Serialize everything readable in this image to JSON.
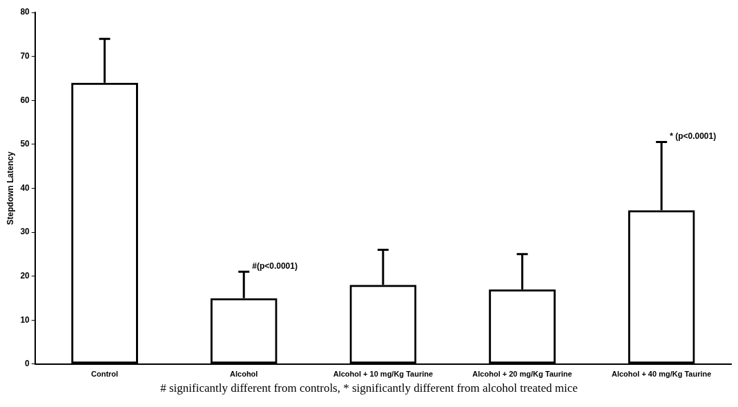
{
  "chart_data": {
    "type": "bar",
    "ylabel": "Stepdown Latency",
    "categories": [
      "Control",
      "Alcohol",
      "Alcohol + 10 mg/Kg Taurine",
      "Alcohol + 20 mg/Kg Taurine",
      "Alcohol + 40 mg/Kg Taurine"
    ],
    "values": [
      64,
      15,
      18,
      17,
      35
    ],
    "color": "#000000",
    "errors": [
      [
        64,
        74
      ],
      [
        15,
        21
      ],
      [
        18,
        26
      ],
      [
        17,
        25
      ],
      [
        35,
        50.5
      ]
    ],
    "ylim": [
      0,
      80
    ],
    "yticks": [
      0,
      10,
      20,
      30,
      40,
      50,
      60,
      70,
      80
    ],
    "grid": false,
    "legend": false,
    "annotations": [
      {
        "text": "#(p<0.0001)",
        "x": "Alcohol",
        "y": 21
      },
      {
        "text": "* (p<0.0001)",
        "x": "Alcohol + 40 mg/Kg Taurine",
        "y": 50.5
      },
      "# significantly different from controls, * significantly different from alcohol treated mice"
    ]
  }
}
